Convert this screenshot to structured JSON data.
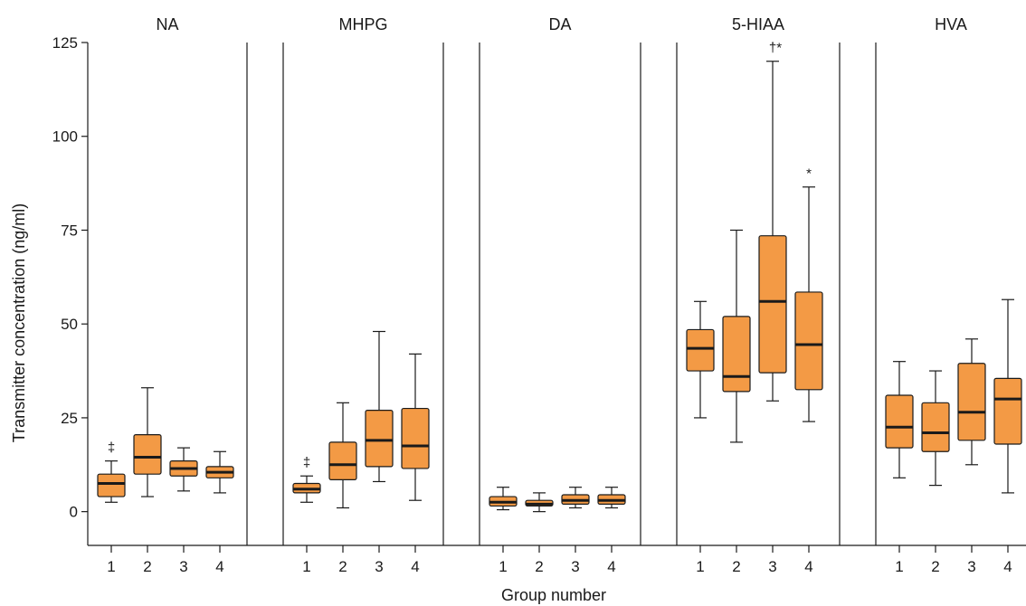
{
  "chart_data": {
    "type": "boxplot",
    "ylabel": "Transmitter concentration (ng/ml)",
    "xlabel": "Group number",
    "ylim": [
      -9,
      125
    ],
    "yticks": [
      0,
      25,
      50,
      75,
      100,
      125
    ],
    "groups": [
      "1",
      "2",
      "3",
      "4"
    ],
    "box_color": "#f39a45",
    "line_color": "#1a1a1a",
    "panels": [
      {
        "name": "NA",
        "boxes": [
          {
            "group": "1",
            "whisker_low": 2.5,
            "q1": 4,
            "median": 7.5,
            "q3": 10,
            "whisker_high": 13.5,
            "mark": "‡"
          },
          {
            "group": "2",
            "whisker_low": 4,
            "q1": 10,
            "median": 14.5,
            "q3": 20.5,
            "whisker_high": 33,
            "mark": ""
          },
          {
            "group": "3",
            "whisker_low": 5.5,
            "q1": 9.5,
            "median": 11.5,
            "q3": 13.5,
            "whisker_high": 17,
            "mark": ""
          },
          {
            "group": "4",
            "whisker_low": 5,
            "q1": 9,
            "median": 10.5,
            "q3": 12,
            "whisker_high": 16,
            "mark": ""
          }
        ]
      },
      {
        "name": "MHPG",
        "boxes": [
          {
            "group": "1",
            "whisker_low": 2.5,
            "q1": 5,
            "median": 6,
            "q3": 7.5,
            "whisker_high": 9.5,
            "mark": "‡"
          },
          {
            "group": "2",
            "whisker_low": 1,
            "q1": 8.5,
            "median": 12.5,
            "q3": 18.5,
            "whisker_high": 29,
            "mark": ""
          },
          {
            "group": "3",
            "whisker_low": 8,
            "q1": 12,
            "median": 19,
            "q3": 27,
            "whisker_high": 48,
            "mark": ""
          },
          {
            "group": "4",
            "whisker_low": 3,
            "q1": 11.5,
            "median": 17.5,
            "q3": 27.5,
            "whisker_high": 42,
            "mark": ""
          }
        ]
      },
      {
        "name": "DA",
        "boxes": [
          {
            "group": "1",
            "whisker_low": 0.5,
            "q1": 1.5,
            "median": 2.5,
            "q3": 4,
            "whisker_high": 6.5,
            "mark": ""
          },
          {
            "group": "2",
            "whisker_low": 0,
            "q1": 1.5,
            "median": 2,
            "q3": 3,
            "whisker_high": 5,
            "mark": ""
          },
          {
            "group": "3",
            "whisker_low": 1,
            "q1": 2,
            "median": 3,
            "q3": 4.5,
            "whisker_high": 6.5,
            "mark": ""
          },
          {
            "group": "4",
            "whisker_low": 1,
            "q1": 2,
            "median": 3,
            "q3": 4.5,
            "whisker_high": 6.5,
            "mark": ""
          }
        ]
      },
      {
        "name": "5-HIAA",
        "boxes": [
          {
            "group": "1",
            "whisker_low": 25,
            "q1": 37.5,
            "median": 43.5,
            "q3": 48.5,
            "whisker_high": 56,
            "mark": ""
          },
          {
            "group": "2",
            "whisker_low": 18.5,
            "q1": 32,
            "median": 36,
            "q3": 52,
            "whisker_high": 75,
            "mark": ""
          },
          {
            "group": "3",
            "whisker_low": 29.5,
            "q1": 37,
            "median": 56,
            "q3": 73.5,
            "whisker_high": 120,
            "mark": "†*"
          },
          {
            "group": "4",
            "whisker_low": 24,
            "q1": 32.5,
            "median": 44.5,
            "q3": 58.5,
            "whisker_high": 86.5,
            "mark": "*"
          }
        ]
      },
      {
        "name": "HVA",
        "boxes": [
          {
            "group": "1",
            "whisker_low": 9,
            "q1": 17,
            "median": 22.5,
            "q3": 31,
            "whisker_high": 40,
            "mark": ""
          },
          {
            "group": "2",
            "whisker_low": 7,
            "q1": 16,
            "median": 21,
            "q3": 29,
            "whisker_high": 37.5,
            "mark": ""
          },
          {
            "group": "3",
            "whisker_low": 12.5,
            "q1": 19,
            "median": 26.5,
            "q3": 39.5,
            "whisker_high": 46,
            "mark": ""
          },
          {
            "group": "4",
            "whisker_low": 5,
            "q1": 18,
            "median": 30,
            "q3": 35.5,
            "whisker_high": 56.5,
            "mark": ""
          }
        ]
      }
    ]
  }
}
